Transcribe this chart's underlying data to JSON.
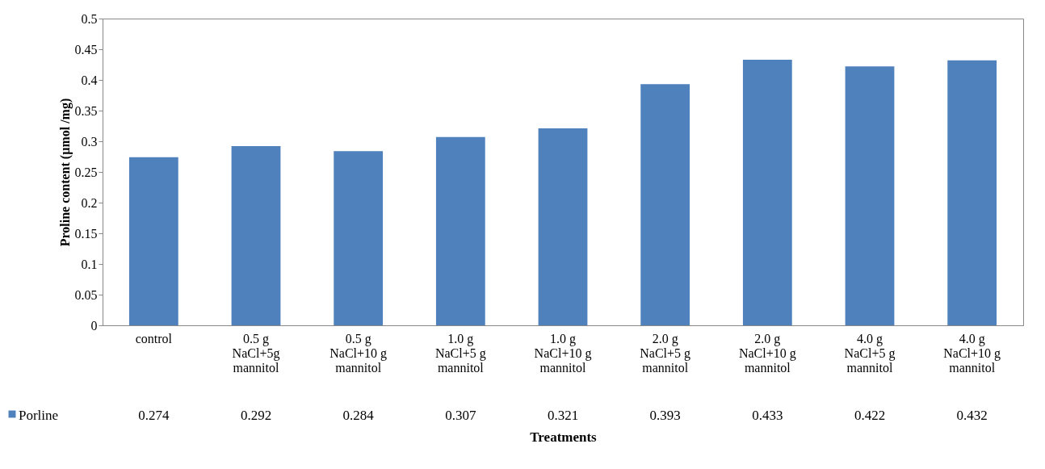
{
  "chart_data": {
    "type": "bar",
    "xlabel": "Treatments",
    "ylabel": "Proline content (µmol /mg)",
    "categories": [
      "control",
      "0.5 g NaCl+5g mannitol",
      "0.5 g NaCl+10 g mannitol",
      "1.0 g NaCl+5 g mannitol",
      "1.0 g NaCl+10 g mannitol",
      "2.0 g NaCl+5 g mannitol",
      "2.0 g NaCl+10 g mannitol",
      "4.0 g NaCl+5 g mannitol",
      "4.0 g NaCl+10 g mannitol"
    ],
    "series": [
      {
        "name": "Porline",
        "color": "#4f81bd",
        "values": [
          0.274,
          0.292,
          0.284,
          0.307,
          0.321,
          0.393,
          0.433,
          0.422,
          0.432
        ]
      }
    ],
    "ylim": [
      0,
      0.5
    ],
    "yticks": [
      0,
      0.05,
      0.1,
      0.15,
      0.2,
      0.25,
      0.3,
      0.35,
      0.4,
      0.45,
      0.5
    ],
    "data_labels": true,
    "legend": "bottom left",
    "grid": false
  }
}
